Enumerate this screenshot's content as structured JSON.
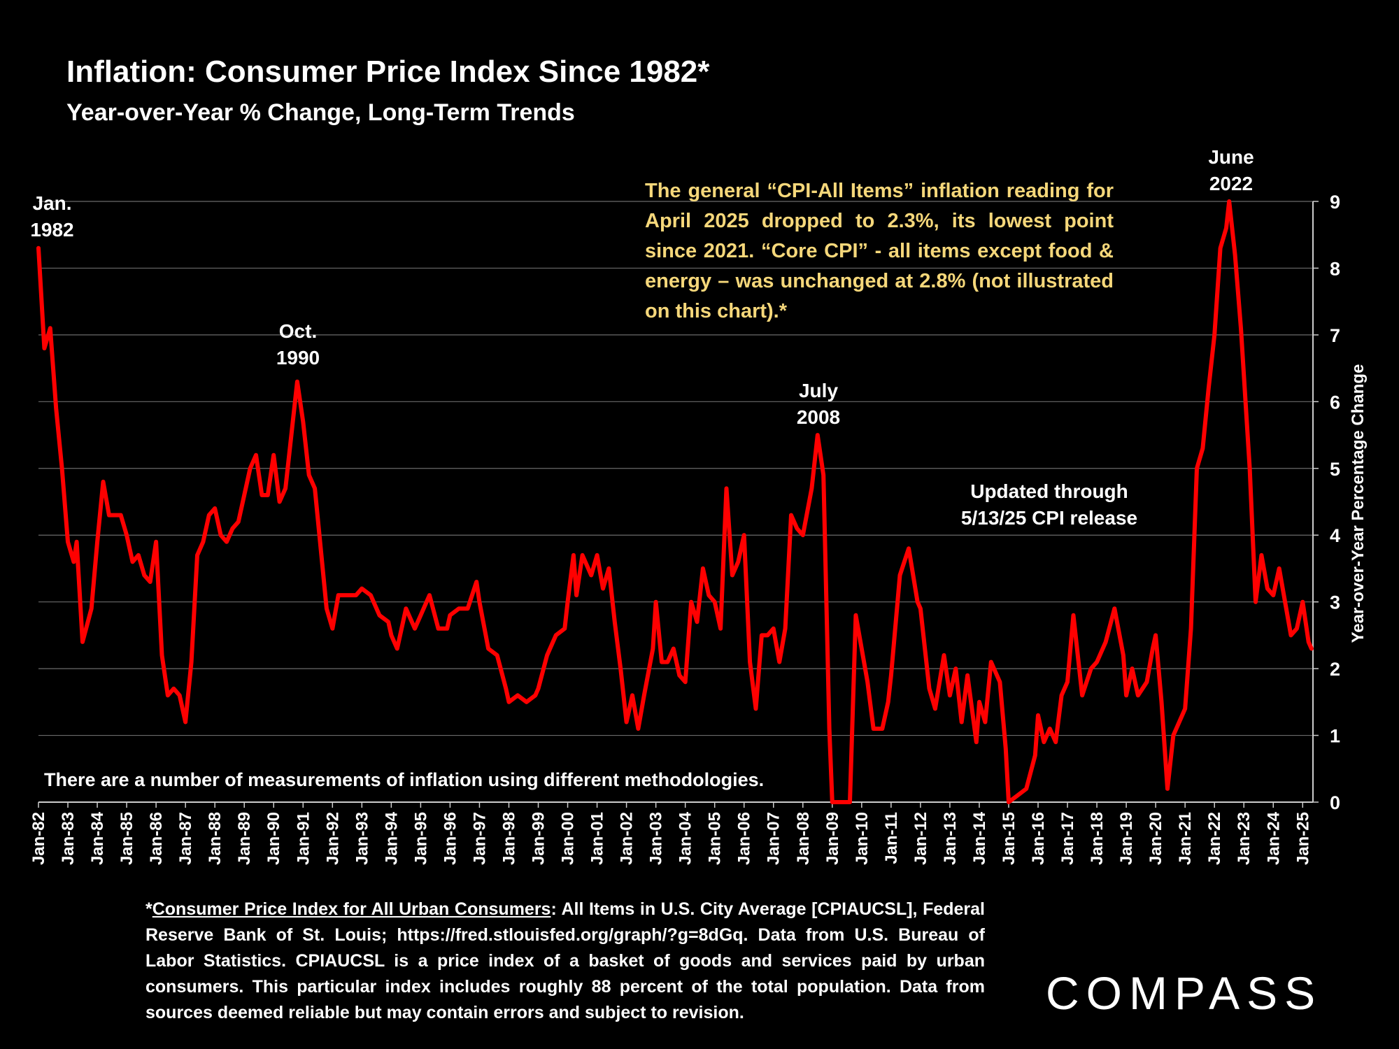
{
  "header": {
    "title": "Inflation: Consumer Price Index Since 1982*",
    "subtitle": "Year-over-Year % Change, Long-Term Trends"
  },
  "annotations": {
    "jan1982": "Jan.\n1982",
    "oct1990": "Oct.\n1990",
    "jul2008": "July\n2008",
    "jun2022": "June\n2022",
    "updated": "Updated through\n5/13/25 CPI release"
  },
  "callout": "The general “CPI-All Items” inflation reading for April 2025 dropped to 2.3%, its lowest point since 2021. “Core CPI” - all items except food & energy – was unchanged at 2.8% (not illustrated on this chart).*",
  "note": "There are a number of measurements of inflation using different methodologies.",
  "footnote": {
    "prefix": "*",
    "link_text": "Consumer Price Index for All Urban Consumers",
    "rest": ": All Items in U.S. City Average [CPIAUCSL], Federal Reserve Bank of St. Louis; https://fred.stlouisfed.org/graph/?g=8dGq. Data from U.S. Bureau of Labor Statistics. CPIAUCSL is a price index of a basket of goods and services paid by urban consumers. This particular index includes roughly 88 percent of the total population. Data from sources deemed reliable but may contain errors and subject to revision."
  },
  "logo": "COMPASS",
  "colors": {
    "background": "#000000",
    "line": "#ff0000",
    "callout": "#f5d77a",
    "grid": "#6a6a6a",
    "text": "#ffffff"
  },
  "chart_data": {
    "type": "line",
    "ylabel": "Year-over-Year Percentage Change",
    "xlabel": "",
    "ylim": [
      0,
      9
    ],
    "yticks": [
      0,
      1,
      2,
      3,
      4,
      5,
      6,
      7,
      8,
      9
    ],
    "y_axis_side": "right",
    "grid": true,
    "xtick_labels": [
      "Jan-82",
      "Jan-83",
      "Jan-84",
      "Jan-85",
      "Jan-86",
      "Jan-87",
      "Jan-88",
      "Jan-89",
      "Jan-90",
      "Jan-91",
      "Jan-92",
      "Jan-93",
      "Jan-94",
      "Jan-95",
      "Jan-96",
      "Jan-97",
      "Jan-98",
      "Jan-99",
      "Jan-00",
      "Jan-01",
      "Jan-02",
      "Jan-03",
      "Jan-04",
      "Jan-05",
      "Jan-06",
      "Jan-07",
      "Jan-08",
      "Jan-09",
      "Jan-10",
      "Jan-11",
      "Jan-12",
      "Jan-13",
      "Jan-14",
      "Jan-15",
      "Jan-16",
      "Jan-17",
      "Jan-18",
      "Jan-19",
      "Jan-20",
      "Jan-21",
      "Jan-22",
      "Jan-23",
      "Jan-24",
      "Jan-25"
    ],
    "series": [
      {
        "points": [
          [
            1982.0,
            8.3
          ],
          [
            1982.2,
            6.8
          ],
          [
            1982.4,
            7.1
          ],
          [
            1982.6,
            5.9
          ],
          [
            1982.8,
            5.0
          ],
          [
            1983.0,
            3.9
          ],
          [
            1983.2,
            3.6
          ],
          [
            1983.3,
            3.9
          ],
          [
            1983.5,
            2.4
          ],
          [
            1983.8,
            2.9
          ],
          [
            1984.0,
            3.9
          ],
          [
            1984.2,
            4.8
          ],
          [
            1984.4,
            4.3
          ],
          [
            1984.8,
            4.3
          ],
          [
            1985.0,
            4.0
          ],
          [
            1985.2,
            3.6
          ],
          [
            1985.4,
            3.7
          ],
          [
            1985.6,
            3.4
          ],
          [
            1985.8,
            3.3
          ],
          [
            1986.0,
            3.9
          ],
          [
            1986.2,
            2.2
          ],
          [
            1986.4,
            1.6
          ],
          [
            1986.6,
            1.7
          ],
          [
            1986.8,
            1.6
          ],
          [
            1987.0,
            1.2
          ],
          [
            1987.2,
            2.1
          ],
          [
            1987.4,
            3.7
          ],
          [
            1987.6,
            3.9
          ],
          [
            1987.8,
            4.3
          ],
          [
            1988.0,
            4.4
          ],
          [
            1988.2,
            4.0
          ],
          [
            1988.4,
            3.9
          ],
          [
            1988.6,
            4.1
          ],
          [
            1988.8,
            4.2
          ],
          [
            1989.0,
            4.6
          ],
          [
            1989.2,
            5.0
          ],
          [
            1989.4,
            5.2
          ],
          [
            1989.6,
            4.6
          ],
          [
            1989.8,
            4.6
          ],
          [
            1990.0,
            5.2
          ],
          [
            1990.2,
            4.5
          ],
          [
            1990.4,
            4.7
          ],
          [
            1990.6,
            5.5
          ],
          [
            1990.8,
            6.3
          ],
          [
            1991.0,
            5.7
          ],
          [
            1991.2,
            4.9
          ],
          [
            1991.4,
            4.7
          ],
          [
            1991.6,
            3.8
          ],
          [
            1991.8,
            2.9
          ],
          [
            1992.0,
            2.6
          ],
          [
            1992.2,
            3.1
          ],
          [
            1992.5,
            3.1
          ],
          [
            1992.8,
            3.1
          ],
          [
            1993.0,
            3.2
          ],
          [
            1993.3,
            3.1
          ],
          [
            1993.6,
            2.8
          ],
          [
            1993.9,
            2.7
          ],
          [
            1994.0,
            2.5
          ],
          [
            1994.2,
            2.3
          ],
          [
            1994.5,
            2.9
          ],
          [
            1994.8,
            2.6
          ],
          [
            1995.0,
            2.8
          ],
          [
            1995.3,
            3.1
          ],
          [
            1995.6,
            2.6
          ],
          [
            1995.9,
            2.6
          ],
          [
            1996.0,
            2.8
          ],
          [
            1996.3,
            2.9
          ],
          [
            1996.6,
            2.9
          ],
          [
            1996.9,
            3.3
          ],
          [
            1997.0,
            3.0
          ],
          [
            1997.3,
            2.3
          ],
          [
            1997.6,
            2.2
          ],
          [
            1997.9,
            1.7
          ],
          [
            1998.0,
            1.5
          ],
          [
            1998.3,
            1.6
          ],
          [
            1998.6,
            1.5
          ],
          [
            1998.9,
            1.6
          ],
          [
            1999.0,
            1.7
          ],
          [
            1999.3,
            2.2
          ],
          [
            1999.6,
            2.5
          ],
          [
            1999.9,
            2.6
          ],
          [
            2000.0,
            3.0
          ],
          [
            2000.2,
            3.7
          ],
          [
            2000.3,
            3.1
          ],
          [
            2000.5,
            3.7
          ],
          [
            2000.8,
            3.4
          ],
          [
            2001.0,
            3.7
          ],
          [
            2001.2,
            3.2
          ],
          [
            2001.4,
            3.5
          ],
          [
            2001.6,
            2.7
          ],
          [
            2001.8,
            2.0
          ],
          [
            2002.0,
            1.2
          ],
          [
            2002.2,
            1.6
          ],
          [
            2002.4,
            1.1
          ],
          [
            2002.6,
            1.6
          ],
          [
            2002.9,
            2.3
          ],
          [
            2003.0,
            3.0
          ],
          [
            2003.2,
            2.1
          ],
          [
            2003.4,
            2.1
          ],
          [
            2003.6,
            2.3
          ],
          [
            2003.8,
            1.9
          ],
          [
            2004.0,
            1.8
          ],
          [
            2004.2,
            3.0
          ],
          [
            2004.4,
            2.7
          ],
          [
            2004.6,
            3.5
          ],
          [
            2004.8,
            3.1
          ],
          [
            2005.0,
            3.0
          ],
          [
            2005.2,
            2.6
          ],
          [
            2005.4,
            4.7
          ],
          [
            2005.6,
            3.4
          ],
          [
            2005.8,
            3.6
          ],
          [
            2006.0,
            4.0
          ],
          [
            2006.2,
            2.1
          ],
          [
            2006.4,
            1.4
          ],
          [
            2006.6,
            2.5
          ],
          [
            2006.8,
            2.5
          ],
          [
            2007.0,
            2.6
          ],
          [
            2007.2,
            2.1
          ],
          [
            2007.4,
            2.6
          ],
          [
            2007.6,
            4.3
          ],
          [
            2007.8,
            4.1
          ],
          [
            2008.0,
            4.0
          ],
          [
            2008.3,
            4.7
          ],
          [
            2008.5,
            5.5
          ],
          [
            2008.7,
            4.9
          ],
          [
            2008.9,
            1.1
          ],
          [
            2009.0,
            0.0
          ],
          [
            2009.6,
            0.0
          ],
          [
            2009.8,
            2.8
          ],
          [
            2010.0,
            2.3
          ],
          [
            2010.2,
            1.8
          ],
          [
            2010.4,
            1.1
          ],
          [
            2010.7,
            1.1
          ],
          [
            2010.9,
            1.5
          ],
          [
            2011.0,
            1.9
          ],
          [
            2011.3,
            3.4
          ],
          [
            2011.6,
            3.8
          ],
          [
            2011.9,
            3.0
          ],
          [
            2012.0,
            2.9
          ],
          [
            2012.3,
            1.7
          ],
          [
            2012.5,
            1.4
          ],
          [
            2012.8,
            2.2
          ],
          [
            2013.0,
            1.6
          ],
          [
            2013.2,
            2.0
          ],
          [
            2013.4,
            1.2
          ],
          [
            2013.6,
            1.9
          ],
          [
            2013.9,
            0.9
          ],
          [
            2014.0,
            1.5
          ],
          [
            2014.2,
            1.2
          ],
          [
            2014.4,
            2.1
          ],
          [
            2014.7,
            1.8
          ],
          [
            2014.9,
            0.8
          ],
          [
            2015.0,
            0.0
          ],
          [
            2015.3,
            0.1
          ],
          [
            2015.6,
            0.2
          ],
          [
            2015.9,
            0.7
          ],
          [
            2016.0,
            1.3
          ],
          [
            2016.2,
            0.9
          ],
          [
            2016.4,
            1.1
          ],
          [
            2016.6,
            0.9
          ],
          [
            2016.8,
            1.6
          ],
          [
            2017.0,
            1.8
          ],
          [
            2017.2,
            2.8
          ],
          [
            2017.5,
            1.6
          ],
          [
            2017.8,
            2.0
          ],
          [
            2018.0,
            2.1
          ],
          [
            2018.3,
            2.4
          ],
          [
            2018.6,
            2.9
          ],
          [
            2018.9,
            2.2
          ],
          [
            2019.0,
            1.6
          ],
          [
            2019.2,
            2.0
          ],
          [
            2019.4,
            1.6
          ],
          [
            2019.7,
            1.8
          ],
          [
            2019.9,
            2.3
          ],
          [
            2020.0,
            2.5
          ],
          [
            2020.2,
            1.5
          ],
          [
            2020.4,
            0.2
          ],
          [
            2020.6,
            1.0
          ],
          [
            2020.8,
            1.2
          ],
          [
            2021.0,
            1.4
          ],
          [
            2021.2,
            2.6
          ],
          [
            2021.4,
            5.0
          ],
          [
            2021.6,
            5.3
          ],
          [
            2021.8,
            6.2
          ],
          [
            2022.0,
            7.0
          ],
          [
            2022.2,
            8.3
          ],
          [
            2022.4,
            8.6
          ],
          [
            2022.5,
            9.0
          ],
          [
            2022.7,
            8.2
          ],
          [
            2022.9,
            7.1
          ],
          [
            2023.0,
            6.4
          ],
          [
            2023.2,
            5.0
          ],
          [
            2023.4,
            3.0
          ],
          [
            2023.6,
            3.7
          ],
          [
            2023.8,
            3.2
          ],
          [
            2024.0,
            3.1
          ],
          [
            2024.2,
            3.5
          ],
          [
            2024.4,
            3.0
          ],
          [
            2024.6,
            2.5
          ],
          [
            2024.8,
            2.6
          ],
          [
            2025.0,
            3.0
          ],
          [
            2025.2,
            2.4
          ],
          [
            2025.3,
            2.3
          ]
        ]
      }
    ]
  }
}
